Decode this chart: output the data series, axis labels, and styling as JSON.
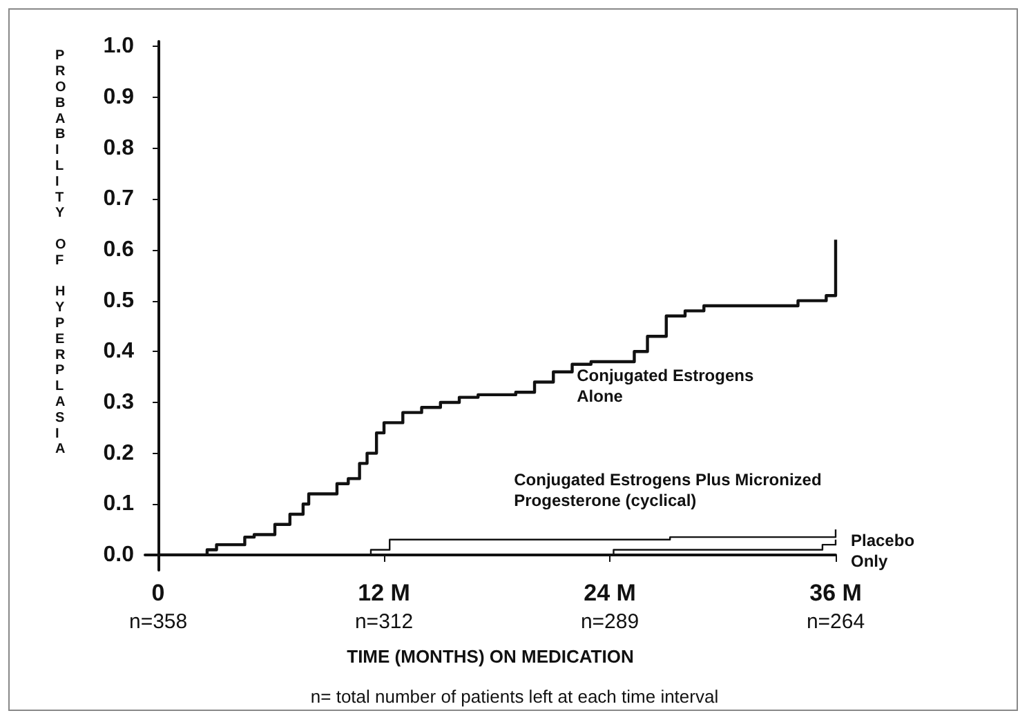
{
  "chart_data": {
    "type": "step",
    "xlabel": "TIME (MONTHS) ON MEDICATION",
    "ylabel": "PROBABILITY OF HYPERPLASIA",
    "xlim": [
      -0.7,
      36
    ],
    "xticks": [
      0,
      {
        "value": 12,
        "label": "12 M"
      },
      {
        "value": 24,
        "label": "24 M"
      },
      {
        "value": 36,
        "label": "36 M"
      }
    ],
    "ylim": [
      -0.03,
      1.01
    ],
    "yticks": [
      {
        "value": 0,
        "label": "0.0"
      },
      {
        "value": 0.1,
        "label": "0.1"
      },
      {
        "value": 0.2,
        "label": "0.2"
      },
      {
        "value": 0.3,
        "label": "0.3"
      },
      {
        "value": 0.4,
        "label": "0.4"
      },
      {
        "value": 0.5,
        "label": "0.5"
      },
      {
        "value": 0.6,
        "label": "0.6"
      },
      {
        "value": 0.7,
        "label": "0.7"
      },
      {
        "value": 0.8,
        "label": "0.8"
      },
      {
        "value": 0.9,
        "label": "0.9"
      },
      {
        "value": 1,
        "label": "1.0"
      }
    ],
    "series": [
      {
        "name": "Conjugated Estrogens Alone",
        "color": "#111111",
        "x": [
          0,
          2.1,
          2.6,
          3.1,
          4.1,
          4.6,
          5.1,
          6.2,
          7.0,
          7.7,
          8.0,
          9.0,
          9.5,
          10.1,
          10.7,
          11.1,
          11.6,
          12,
          13,
          14,
          15,
          16,
          17,
          19,
          20,
          21,
          22,
          23,
          24.5,
          25.3,
          26,
          27,
          28,
          29,
          31,
          33,
          34,
          35.5,
          36,
          36
        ],
        "values": [
          0,
          0,
          0.01,
          0.02,
          0.02,
          0.035,
          0.04,
          0.06,
          0.08,
          0.1,
          0.12,
          0.12,
          0.14,
          0.15,
          0.18,
          0.2,
          0.24,
          0.26,
          0.28,
          0.29,
          0.3,
          0.31,
          0.315,
          0.32,
          0.34,
          0.36,
          0.375,
          0.38,
          0.38,
          0.4,
          0.43,
          0.47,
          0.48,
          0.49,
          0.49,
          0.49,
          0.5,
          0.51,
          0.52,
          0.62
        ]
      },
      {
        "name": "Conjugated Estrogens Plus Micronized Progesterone (cyclical)",
        "color": "#111111",
        "x": [
          0,
          11,
          11.3,
          12,
          12.3,
          27.2,
          36,
          36
        ],
        "values": [
          0,
          0,
          0.01,
          0.01,
          0.03,
          0.035,
          0.035,
          0.05
        ]
      },
      {
        "name": "Placebo Only",
        "color": "#111111",
        "x": [
          0,
          23.8,
          24.2,
          35,
          35.3,
          36,
          36
        ],
        "values": [
          0,
          0,
          0.01,
          0.01,
          0.02,
          0.02,
          0.03
        ]
      }
    ],
    "grid": false,
    "legend": false,
    "marker": "none",
    "line_style": "solid",
    "annotations": [
      "n=358",
      "n=312",
      "n=289",
      "n=264",
      "n= total number of patients left at each time interval"
    ]
  }
}
